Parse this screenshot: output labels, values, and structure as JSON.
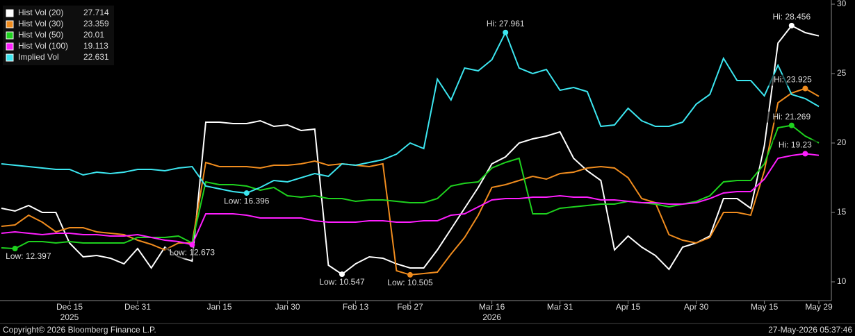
{
  "chart_data": {
    "type": "line",
    "categories": [
      null,
      null,
      null,
      null,
      null,
      "Dec 15",
      null,
      null,
      null,
      null,
      "Dec 31",
      null,
      null,
      null,
      null,
      null,
      "Jan 15",
      null,
      null,
      null,
      null,
      "Jan 30",
      null,
      null,
      null,
      null,
      "Feb 13",
      null,
      null,
      null,
      "Feb 27",
      null,
      null,
      null,
      null,
      null,
      "Mar 16",
      null,
      null,
      null,
      null,
      "Mar 31",
      null,
      null,
      null,
      null,
      "Apr 15",
      null,
      null,
      null,
      null,
      "Apr 30",
      null,
      null,
      null,
      null,
      "May 15",
      null,
      null,
      null,
      "May 29"
    ],
    "years": [
      "2025",
      "2026"
    ],
    "ylim": [
      8.65,
      30.3
    ],
    "yticks": [
      10,
      15,
      20,
      25,
      30
    ],
    "grid": false,
    "series": [
      {
        "name": "Hist Vol (20)",
        "color": "#ffffff",
        "hi_label": "Hi: 28.456",
        "low_label": "Low: 10.547",
        "values": [
          15.3,
          15.1,
          15.5,
          15.0,
          15.0,
          12.8,
          11.8,
          11.9,
          11.7,
          11.3,
          12.4,
          11.0,
          12.5,
          11.8,
          11.5,
          21.5,
          21.5,
          21.4,
          21.4,
          21.6,
          21.2,
          21.3,
          20.9,
          21.0,
          11.2,
          10.547,
          11.3,
          11.8,
          11.7,
          11.3,
          11.0,
          11.0,
          12.3,
          13.8,
          15.3,
          16.8,
          18.5,
          19.0,
          20.0,
          20.3,
          20.5,
          20.8,
          18.9,
          18.0,
          17.3,
          12.3,
          13.3,
          12.5,
          11.9,
          10.9,
          12.5,
          12.8,
          13.3,
          16.0,
          16.0,
          15.3,
          19.8,
          27.2,
          28.456,
          27.95,
          27.714
        ]
      },
      {
        "name": "Hist Vol (30)",
        "color": "#f08c1e",
        "hi_label": "Hi: 23.925",
        "low_label": "Low: 10.505",
        "values": [
          14.0,
          14.1,
          14.8,
          14.3,
          13.6,
          13.9,
          13.9,
          13.6,
          13.5,
          13.4,
          13.0,
          12.7,
          12.3,
          12.8,
          12.8,
          18.6,
          18.3,
          18.3,
          18.3,
          18.2,
          18.4,
          18.4,
          18.5,
          18.7,
          18.4,
          18.5,
          18.4,
          18.3,
          18.5,
          10.8,
          10.505,
          10.6,
          10.7,
          12.0,
          13.2,
          14.8,
          16.8,
          17.0,
          17.3,
          17.6,
          17.4,
          17.8,
          17.9,
          18.2,
          18.3,
          18.2,
          17.5,
          16.0,
          15.7,
          13.4,
          13.0,
          12.8,
          13.2,
          15.0,
          15.0,
          14.8,
          18.0,
          22.9,
          23.6,
          23.925,
          23.359
        ]
      },
      {
        "name": "Hist Vol (50)",
        "color": "#1ed21e",
        "hi_label": "Hi: 21.269",
        "low_label": "Low: 12.397",
        "values": [
          12.45,
          12.397,
          12.9,
          12.9,
          12.8,
          12.9,
          12.8,
          12.8,
          12.8,
          12.8,
          13.2,
          13.2,
          13.2,
          13.3,
          12.8,
          17.2,
          17.0,
          17.0,
          16.9,
          16.6,
          16.8,
          16.2,
          16.1,
          16.2,
          16.0,
          16.0,
          15.8,
          15.9,
          15.9,
          15.8,
          15.7,
          15.7,
          16.0,
          16.9,
          17.1,
          17.2,
          18.2,
          18.6,
          18.9,
          14.9,
          14.9,
          15.3,
          15.4,
          15.5,
          15.6,
          15.6,
          15.8,
          15.7,
          15.6,
          15.4,
          15.6,
          15.8,
          16.2,
          17.2,
          17.3,
          17.3,
          18.5,
          21.1,
          21.269,
          20.5,
          20.01
        ]
      },
      {
        "name": "Hist Vol (100)",
        "color": "#ff1eff",
        "hi_label": "Hi: 19.23",
        "low_label": "Low: 12.673",
        "values": [
          13.5,
          13.6,
          13.5,
          13.4,
          13.5,
          13.5,
          13.4,
          13.4,
          13.3,
          13.3,
          13.4,
          13.2,
          13.0,
          12.9,
          12.673,
          14.9,
          14.9,
          14.9,
          14.8,
          14.6,
          14.6,
          14.6,
          14.6,
          14.4,
          14.3,
          14.3,
          14.3,
          14.4,
          14.4,
          14.3,
          14.3,
          14.4,
          14.4,
          14.8,
          14.9,
          15.4,
          15.9,
          16.0,
          16.0,
          16.1,
          16.1,
          16.2,
          16.1,
          16.1,
          15.9,
          15.9,
          15.8,
          15.7,
          15.7,
          15.6,
          15.6,
          15.7,
          16.0,
          16.4,
          16.5,
          16.5,
          17.4,
          18.9,
          19.1,
          19.23,
          19.113
        ]
      },
      {
        "name": "Implied Vol",
        "color": "#3ce6f0",
        "hi_label": "Hi: 27.961",
        "low_label": "Low: 16.396",
        "values": [
          18.5,
          18.4,
          18.3,
          18.2,
          18.1,
          18.1,
          17.7,
          17.9,
          17.8,
          17.9,
          18.1,
          18.1,
          18.0,
          18.2,
          18.3,
          16.9,
          16.7,
          16.5,
          16.396,
          16.8,
          17.3,
          17.2,
          17.5,
          17.8,
          17.6,
          18.5,
          18.4,
          18.6,
          18.8,
          19.2,
          20.0,
          19.6,
          24.6,
          23.1,
          25.4,
          25.2,
          26.0,
          27.961,
          25.4,
          25.0,
          25.3,
          23.8,
          24.0,
          23.7,
          21.2,
          21.3,
          22.5,
          21.6,
          21.2,
          21.2,
          21.5,
          22.8,
          23.5,
          26.1,
          24.5,
          24.5,
          23.4,
          25.6,
          23.5,
          23.2,
          22.631
        ]
      }
    ]
  },
  "footer": {
    "copyright": "Copyright© 2026 Bloomberg Finance L.P.",
    "timestamp": "27-May-2026 05:37:46"
  }
}
